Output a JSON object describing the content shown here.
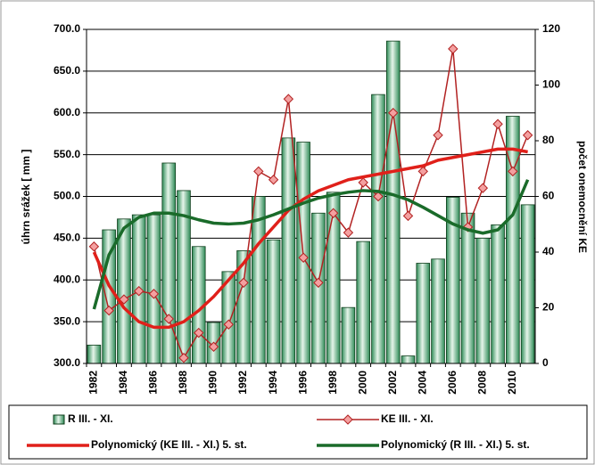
{
  "chart_data": {
    "type": "combo",
    "categories": [
      "1982",
      null,
      "1984",
      null,
      "1986",
      null,
      "1988",
      null,
      "1990",
      null,
      "1992",
      null,
      "1994",
      null,
      "1996",
      null,
      "1998",
      null,
      "2000",
      null,
      "2002",
      null,
      "2004",
      null,
      "2006",
      null,
      "2008",
      null,
      "2010",
      null
    ],
    "y_label": "úhrn srážek [ mm ]",
    "y2_label": "počet onemocnění KE",
    "ylim": [
      300,
      700
    ],
    "yticks": [
      {
        "value": 300,
        "label": "300.0"
      },
      {
        "value": 350,
        "label": "350.0"
      },
      {
        "value": 400,
        "label": "400.0"
      },
      {
        "value": 450,
        "label": "450.0"
      },
      {
        "value": 500,
        "label": "500.0"
      },
      {
        "value": 550,
        "label": "550.0"
      },
      {
        "value": 600,
        "label": "600.0"
      },
      {
        "value": 650,
        "label": "650.0"
      },
      {
        "value": 700,
        "label": "700.0"
      }
    ],
    "y2lim": [
      0,
      120
    ],
    "y2ticks": [
      0,
      20,
      40,
      60,
      80,
      100,
      120
    ],
    "grid": true,
    "legend": "bottom",
    "series": [
      {
        "name": "R III. - XI.",
        "type": "bar",
        "color": "#2e8b57",
        "values": [
          322,
          460,
          473,
          478,
          478,
          540,
          507,
          440,
          349,
          410,
          435,
          500,
          448,
          570,
          565,
          480,
          505,
          367,
          446,
          622,
          686,
          309,
          420,
          425,
          499,
          480,
          450,
          466,
          596,
          490
        ]
      },
      {
        "name": "KE III. - XI.",
        "type": "line",
        "axis": "y2",
        "color": "#b22222",
        "marker": "diamond",
        "values": [
          42,
          19,
          23,
          26,
          25,
          16,
          2,
          11,
          6,
          14,
          29,
          69,
          66,
          95,
          38,
          29,
          54,
          47,
          65,
          60,
          90,
          53,
          69,
          82,
          113,
          49,
          63,
          86,
          69,
          82
        ]
      },
      {
        "name": "Polynomický (KE III. - XI.)  5. st.",
        "type": "line",
        "axis": "y2",
        "color": "#e0201a",
        "values": [
          40,
          28,
          20,
          15,
          13,
          13,
          15,
          19,
          24,
          30,
          36,
          43,
          49,
          55,
          59,
          62,
          64,
          66,
          67,
          68,
          69,
          70,
          71,
          73,
          74,
          75,
          76,
          77,
          77,
          76
        ]
      },
      {
        "name": "Polynomický (R III. - XI.) 5. st.",
        "type": "line",
        "color": "#1a6b2a",
        "values": [
          365,
          430,
          462,
          475,
          480,
          480,
          477,
          472,
          468,
          467,
          468,
          472,
          478,
          485,
          492,
          498,
          502,
          505,
          507,
          506,
          502,
          496,
          487,
          477,
          467,
          460,
          456,
          460,
          478,
          520
        ]
      }
    ]
  }
}
